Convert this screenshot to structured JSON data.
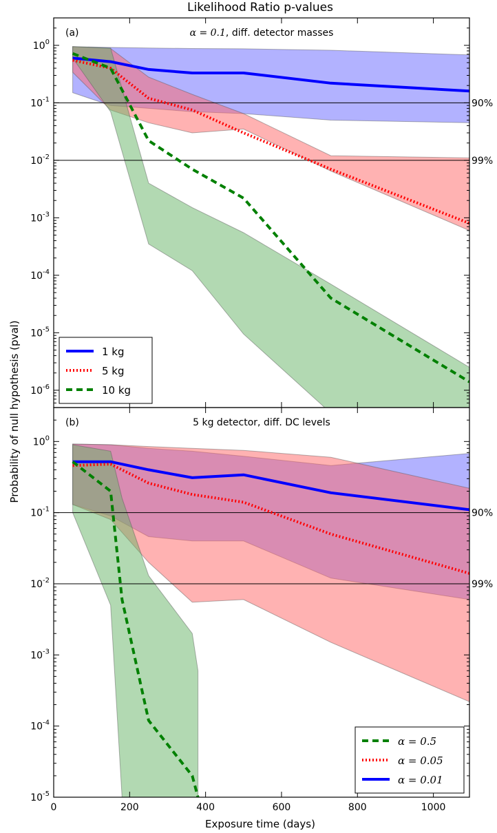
{
  "chart_data": {
    "type": "area",
    "title": "Likelihood Ratio p-values",
    "xlabel": "Exposure time (days)",
    "ylabel": "Probability of null hypothesis (pval)",
    "xlim": [
      0,
      1095
    ],
    "x_ticks": [
      0,
      200,
      400,
      600,
      800,
      1000
    ],
    "x_tick_labels": [
      "0",
      "200",
      "400",
      "600",
      "800",
      "1000"
    ],
    "y_scale": "log",
    "threshold_lines": [
      {
        "value": 0.1,
        "label": "90%"
      },
      {
        "value": 0.01,
        "label": "99%"
      }
    ],
    "panels": [
      {
        "panel_label": "(a)",
        "annotation_prefix": "α = 0.1",
        "annotation_suffix": ", diff. detector masses",
        "ylim": [
          5e-07,
          3
        ],
        "y_ticks": [
          {
            "v": 1,
            "exp": "0"
          },
          {
            "v": 0.1,
            "exp": "-1"
          },
          {
            "v": 0.01,
            "exp": "-2"
          },
          {
            "v": 0.001,
            "exp": "-3"
          },
          {
            "v": 0.0001,
            "exp": "-4"
          },
          {
            "v": 1e-05,
            "exp": "-5"
          },
          {
            "v": 1e-06,
            "exp": "-6"
          }
        ],
        "legend_position": "lower-left",
        "legend": [
          {
            "label": "1 kg",
            "style": "solid",
            "color": "#0000ff"
          },
          {
            "label": "5 kg",
            "style": "dotted",
            "color": "#ff0000"
          },
          {
            "label": "10 kg",
            "style": "dashed",
            "color": "#008000"
          }
        ],
        "series": [
          {
            "name": "1 kg",
            "color": "#0000ff",
            "band_color": "#6666ff",
            "style": "solid",
            "x": [
              50,
              150,
              250,
              365,
              500,
              730,
              1095
            ],
            "median": [
              0.6,
              0.52,
              0.38,
              0.33,
              0.33,
              0.22,
              0.16
            ],
            "band_upper": [
              0.95,
              0.92,
              0.9,
              0.88,
              0.87,
              0.82,
              0.68
            ],
            "band_lower": [
              0.15,
              0.09,
              0.08,
              0.07,
              0.065,
              0.05,
              0.045
            ]
          },
          {
            "name": "5 kg",
            "color": "#ff0000",
            "band_color": "#ff6666",
            "style": "dotted",
            "x": [
              50,
              150,
              250,
              365,
              500,
              730,
              1095
            ],
            "median": [
              0.55,
              0.4,
              0.12,
              0.075,
              0.03,
              0.007,
              0.0008
            ],
            "band_upper": [
              0.95,
              0.88,
              0.28,
              0.14,
              0.065,
              0.012,
              0.011
            ],
            "band_lower": [
              0.34,
              0.075,
              0.045,
              0.03,
              0.035,
              0.0065,
              0.0006
            ]
          },
          {
            "name": "10 kg",
            "color": "#008000",
            "band_color": "#66b366",
            "style": "dashed",
            "x": [
              50,
              150,
              250,
              365,
              500,
              730,
              1095
            ],
            "median": [
              0.72,
              0.4,
              0.022,
              0.007,
              0.0022,
              4e-05,
              1.4e-06
            ],
            "band_upper": [
              0.95,
              0.9,
              0.004,
              0.0015,
              0.00055,
              7e-05,
              2.5e-06
            ],
            "band_lower": [
              0.6,
              0.07,
              0.00035,
              0.00012,
              9.5e-06,
              4e-07,
              4e-07
            ]
          }
        ]
      },
      {
        "panel_label": "(b)",
        "annotation_prefix": "",
        "annotation_suffix": "5 kg detector, diff. DC levels",
        "ylim": [
          1e-05,
          3
        ],
        "y_ticks": [
          {
            "v": 1,
            "exp": "0"
          },
          {
            "v": 0.1,
            "exp": "-1"
          },
          {
            "v": 0.01,
            "exp": "-2"
          },
          {
            "v": 0.001,
            "exp": "-3"
          },
          {
            "v": 0.0001,
            "exp": "-4"
          },
          {
            "v": 1e-05,
            "exp": "-5"
          }
        ],
        "legend_position": "lower-right",
        "legend": [
          {
            "label": "α = 0.5",
            "style": "dashed",
            "color": "#008000"
          },
          {
            "label": "α = 0.05",
            "style": "dotted",
            "color": "#ff0000"
          },
          {
            "label": "α = 0.01",
            "style": "solid",
            "color": "#0000ff"
          }
        ],
        "series": [
          {
            "name": "α = 0.01",
            "color": "#0000ff",
            "band_color": "#6666ff",
            "style": "solid",
            "x": [
              50,
              150,
              250,
              365,
              500,
              730,
              1095
            ],
            "median": [
              0.52,
              0.52,
              0.4,
              0.31,
              0.34,
              0.19,
              0.11
            ],
            "band_upper": [
              0.92,
              0.9,
              0.8,
              0.73,
              0.62,
              0.46,
              0.68
            ],
            "band_lower": [
              0.13,
              0.09,
              0.046,
              0.04,
              0.04,
              0.012,
              0.006
            ]
          },
          {
            "name": "α = 0.05",
            "color": "#ff0000",
            "band_color": "#ff6666",
            "style": "dotted",
            "x": [
              50,
              150,
              250,
              365,
              500,
              730,
              1095
            ],
            "median": [
              0.46,
              0.48,
              0.26,
              0.18,
              0.14,
              0.05,
              0.014
            ],
            "band_upper": [
              0.92,
              0.9,
              0.85,
              0.8,
              0.75,
              0.6,
              0.22
            ],
            "band_lower": [
              0.13,
              0.08,
              0.02,
              0.0055,
              0.006,
              0.0015,
              0.00022
            ]
          },
          {
            "name": "α = 0.5",
            "color": "#008000",
            "band_color": "#66b366",
            "style": "dashed",
            "x": [
              50,
              150,
              180,
              250,
              365,
              380
            ],
            "median": [
              0.52,
              0.2,
              0.006,
              0.00012,
              2e-05,
              1e-05
            ],
            "band_upper": [
              0.9,
              0.73,
              0.16,
              0.013,
              0.002,
              0.0006
            ],
            "band_lower": [
              0.1,
              0.005,
              1e-05,
              1e-05,
              1e-05,
              1e-05
            ]
          }
        ]
      }
    ]
  }
}
